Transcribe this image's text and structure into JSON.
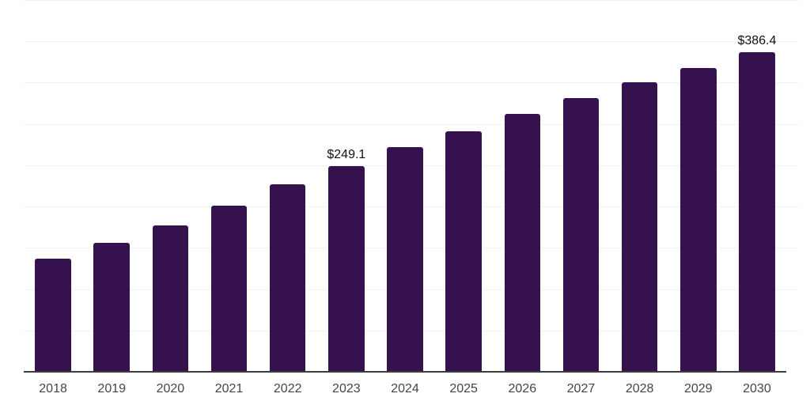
{
  "chart_data": {
    "type": "bar",
    "title": "",
    "xlabel": "",
    "ylabel": "",
    "categories": [
      "2018",
      "2019",
      "2020",
      "2021",
      "2022",
      "2023",
      "2024",
      "2025",
      "2026",
      "2027",
      "2028",
      "2029",
      "2030"
    ],
    "values": [
      137.2,
      155.8,
      177.6,
      201.3,
      226.7,
      249.1,
      271.5,
      291.4,
      312.4,
      331.3,
      350.4,
      368.1,
      386.4
    ],
    "data_labels": {
      "2023": "$249.1",
      "2030": "$386.4"
    },
    "ylim": [
      0,
      450
    ],
    "gridline_step": 50,
    "grid": "horizontal",
    "legend": "none",
    "y_axis_tick_labels": "none",
    "colors": {
      "background": "#ffffff",
      "bar": "#35124e",
      "gridline": "#f2f2f2",
      "axis_line": "#3d3d3d",
      "tick_label": "#454545",
      "data_label": "#111111"
    }
  }
}
